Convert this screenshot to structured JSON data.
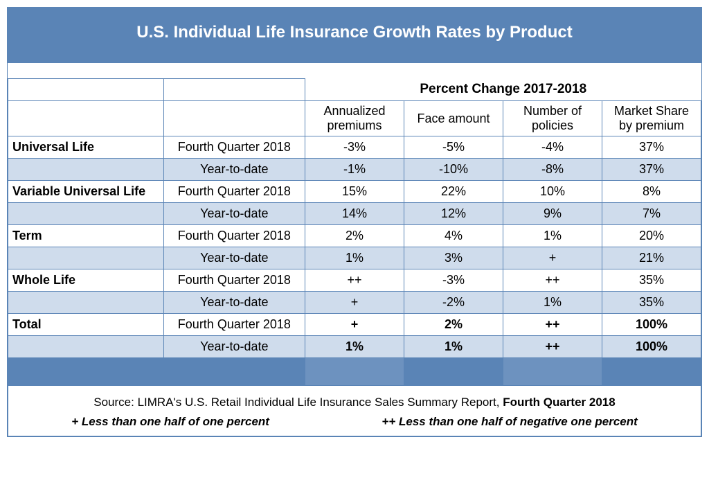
{
  "colors": {
    "header_bg": "#5a84b6",
    "header_bg_alt": "#6d92bf",
    "row_alt_bg": "#cfdcec",
    "border": "#5a84b6",
    "text": "#000000",
    "title_text": "#ffffff"
  },
  "title": "U.S. Individual Life Insurance Growth Rates by Product",
  "super_header": "Percent Change 2017-2018",
  "columns": [
    "Annualized premiums",
    "Face amount",
    "Number of policies",
    "Market Share by premium"
  ],
  "periods": {
    "q": "Fourth Quarter 2018",
    "y": "Year-to-date"
  },
  "rows": [
    {
      "product": "Universal Life",
      "q": [
        "-3%",
        "-5%",
        "-4%",
        "37%"
      ],
      "y": [
        "-1%",
        "-10%",
        "-8%",
        "37%"
      ],
      "bold": false
    },
    {
      "product": "Variable Universal Life",
      "q": [
        "15%",
        "22%",
        "10%",
        "8%"
      ],
      "y": [
        "14%",
        "12%",
        "9%",
        "7%"
      ],
      "bold": false
    },
    {
      "product": "Term",
      "q": [
        "2%",
        "4%",
        "1%",
        "20%"
      ],
      "y": [
        "1%",
        "3%",
        "+",
        "21%"
      ],
      "bold": false
    },
    {
      "product": "Whole Life",
      "q": [
        "++",
        "-3%",
        "++",
        "35%"
      ],
      "y": [
        "+",
        "-2%",
        "1%",
        "35%"
      ],
      "bold": false
    },
    {
      "product": "Total",
      "q": [
        "+",
        "2%",
        "++",
        "100%"
      ],
      "y": [
        "1%",
        "1%",
        "++",
        "100%"
      ],
      "bold": true
    }
  ],
  "source": {
    "prefix": "Source: LIMRA's U.S. Retail Individual Life Insurance Sales Summary Report, ",
    "bold": "Fourth Quarter 2018",
    "note1": "+ Less than one half of one percent",
    "note2": "++ Less than one half of negative one percent"
  }
}
